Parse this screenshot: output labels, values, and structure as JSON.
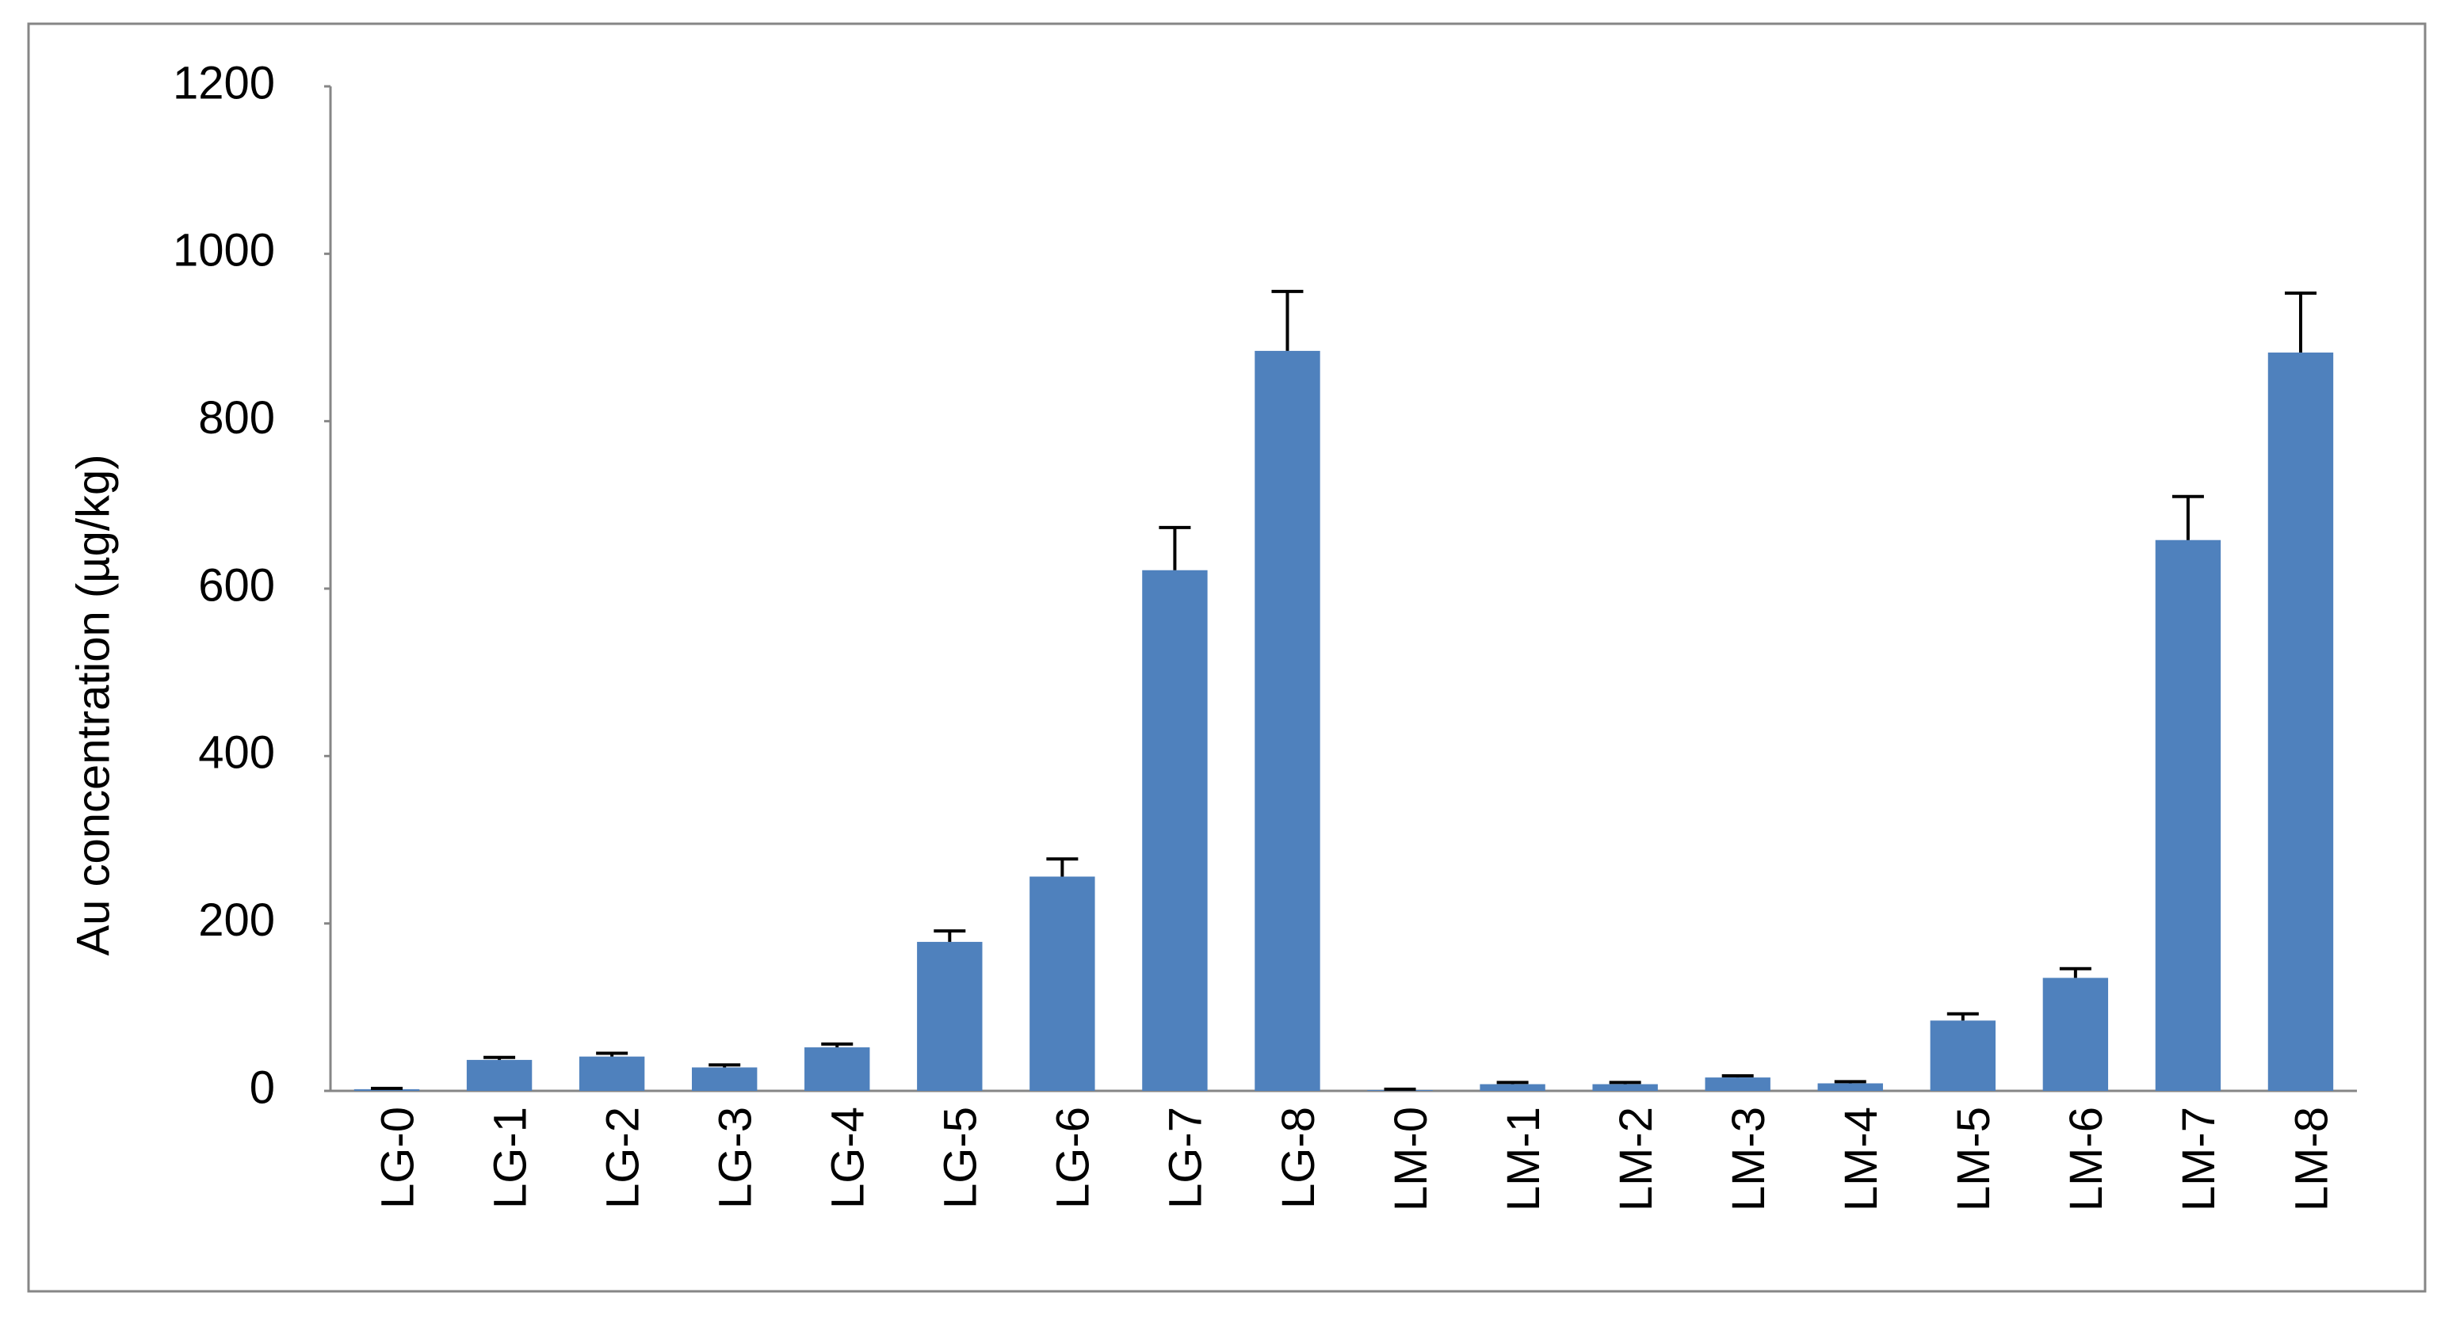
{
  "chart_data": {
    "type": "bar",
    "y_label": "Au concentration (µg/kg)",
    "categories": [
      "LG-0",
      "LG-1",
      "LG-2",
      "LG-3",
      "LG-4",
      "LG-5",
      "LG-6",
      "LG-7",
      "LG-8",
      "LM-0",
      "LM-1",
      "LM-2",
      "LM-3",
      "LM-4",
      "LM-5",
      "LM-6",
      "LM-7",
      "LM-8"
    ],
    "values": [
      2,
      37,
      41,
      28,
      52,
      178,
      256,
      622,
      884,
      1,
      8,
      8,
      16,
      9,
      84,
      135,
      658,
      882
    ],
    "errors": [
      1,
      3,
      4,
      3,
      4,
      13,
      21,
      51,
      71,
      1,
      2,
      2,
      2,
      2,
      8,
      11,
      52,
      71
    ],
    "color": "#4f81bd",
    "error_color": "#000000",
    "ylim": [
      0,
      1200
    ],
    "yticks": [
      0,
      200,
      400,
      600,
      800,
      1000,
      1200
    ],
    "grid": false
  }
}
